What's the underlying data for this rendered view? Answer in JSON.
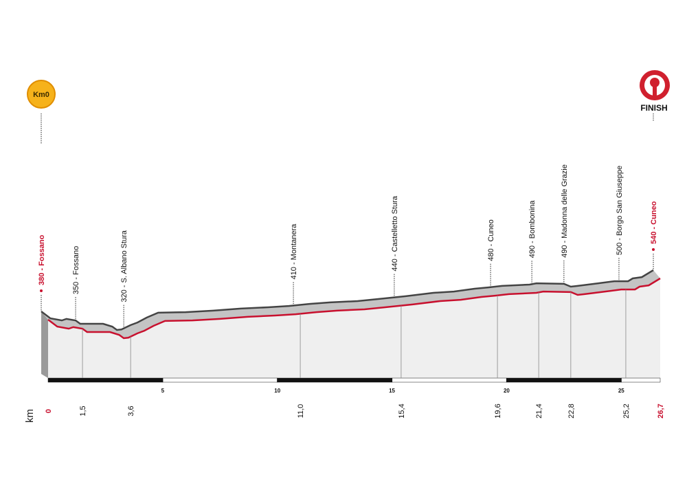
{
  "chart_data": {
    "type": "profile",
    "x": [
      0,
      0.4,
      0.9,
      1.1,
      1.5,
      1.7,
      2.7,
      3.1,
      3.3,
      3.5,
      3.9,
      4.2,
      4.6,
      5.1,
      6.3,
      7.5,
      8.7,
      9.9,
      10.8,
      11.7,
      12.6,
      13.8,
      14.7,
      15.9,
      17.1,
      18.0,
      18.9,
      19.5,
      20.1,
      21.3,
      21.6,
      22.8,
      23.1,
      23.4,
      24.3,
      25.0,
      25.6,
      25.8,
      26.2,
      26.7
    ],
    "values": [
      380,
      353,
      345,
      351,
      345,
      332,
      332,
      321,
      308,
      310,
      327,
      337,
      356,
      375,
      377,
      383,
      391,
      396,
      401,
      409,
      415,
      420,
      428,
      439,
      452,
      457,
      468,
      473,
      479,
      484,
      489,
      487,
      476,
      479,
      489,
      497,
      497,
      508,
      513,
      540
    ],
    "color": "#c8102e",
    "xlim": [
      0,
      26.7
    ],
    "xticks": [
      5,
      10,
      15,
      20,
      25
    ],
    "xlabel": "km",
    "waypoints": [
      {
        "km": 0,
        "label": "380 - Fossano",
        "highlight": true
      },
      {
        "km": {
          "value": 1.5,
          "label": "1,5"
        },
        "label": "350 - Fossano"
      },
      {
        "km": {
          "value": 3.6,
          "label": "3,6"
        },
        "label": "320 - S. Albano Stura"
      },
      {
        "km": {
          "value": 11,
          "label": "11,0"
        },
        "label": "410 - Montanera"
      },
      {
        "km": {
          "value": 15.4,
          "label": "15,4"
        },
        "label": "440 - Castelletto Stura"
      },
      {
        "km": {
          "value": 19.6,
          "label": "19,6"
        },
        "label": "480 - Cuneo"
      },
      {
        "km": {
          "value": 21.4,
          "label": "21,4"
        },
        "label": "490 - Bombonina"
      },
      {
        "km": {
          "value": 22.8,
          "label": "22,8"
        },
        "label": "490 - Madonna delle Grazie"
      },
      {
        "km": {
          "value": 25.2,
          "label": "25,2"
        },
        "label": "500 - Borgo San Giuseppe"
      },
      {
        "km": {
          "value": 26.7,
          "label": "26,7"
        },
        "label": "540 - Cuneo",
        "highlight": true
      }
    ],
    "start_icon": "Km0",
    "finish_icon": "FINISH"
  }
}
